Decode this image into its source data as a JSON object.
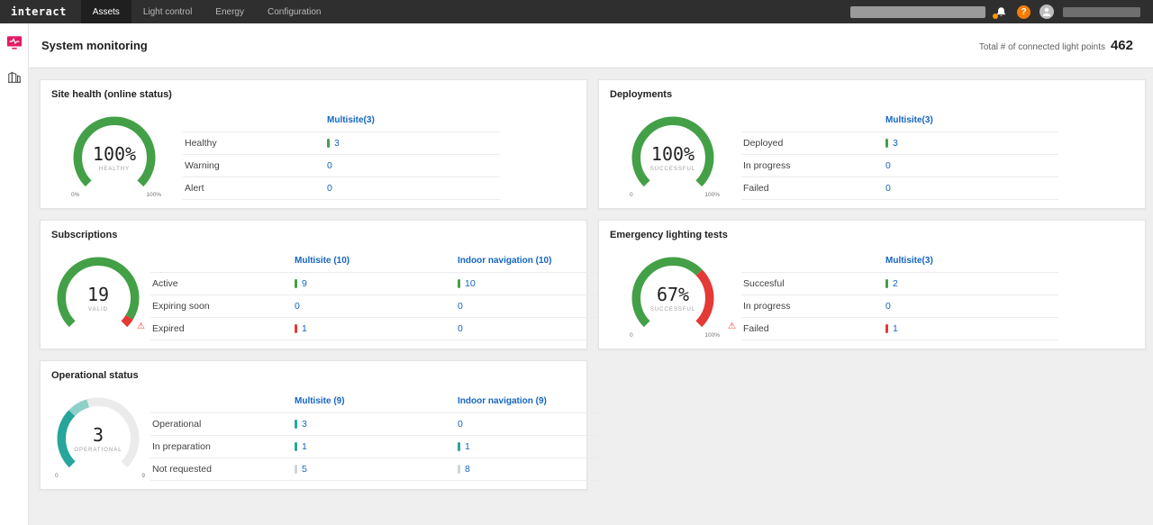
{
  "nav": {
    "brand": "interact",
    "tabs": [
      {
        "label": "Assets",
        "active": true
      },
      {
        "label": "Light control",
        "active": false
      },
      {
        "label": "Energy",
        "active": false
      },
      {
        "label": "Configuration",
        "active": false
      }
    ],
    "help": "?"
  },
  "sidebar": {
    "items": [
      {
        "name": "monitoring-icon",
        "active": true
      },
      {
        "name": "sites-icon",
        "active": false
      }
    ]
  },
  "header": {
    "title": "System monitoring",
    "total_label": "Total # of connected light points",
    "total_value": "462"
  },
  "colors": {
    "green": "#43a047",
    "red": "#e53935",
    "teal": "#26a69a",
    "teal_light": "#8ed0c9",
    "pale": "#ccd7d9",
    "track": "#ebebeb",
    "link": "#1565c0",
    "brand_pink": "#e31b64"
  },
  "cards": [
    {
      "title": "Site health (online status)",
      "gauge": {
        "value": "100%",
        "sub": "HEALTHY",
        "min": "0%",
        "max": "100%",
        "segments": [
          {
            "color": "green",
            "pct": 100
          }
        ]
      },
      "columns": [
        "Multisite(3)"
      ],
      "rows": [
        {
          "label": "Healthy",
          "warn": false,
          "cells": [
            {
              "bar": "green",
              "value": "3"
            }
          ]
        },
        {
          "label": "Warning",
          "warn": false,
          "cells": [
            {
              "bar": null,
              "value": "0"
            }
          ]
        },
        {
          "label": "Alert",
          "warn": false,
          "cells": [
            {
              "bar": null,
              "value": "0"
            }
          ]
        }
      ]
    },
    {
      "title": "Deployments",
      "gauge": {
        "value": "100%",
        "sub": "SUCCESSFUL",
        "min": "0",
        "max": "100%",
        "segments": [
          {
            "color": "green",
            "pct": 100
          }
        ]
      },
      "columns": [
        "Multisite(3)"
      ],
      "rows": [
        {
          "label": "Deployed",
          "warn": false,
          "cells": [
            {
              "bar": "green",
              "value": "3"
            }
          ]
        },
        {
          "label": "In progress",
          "warn": false,
          "cells": [
            {
              "bar": null,
              "value": "0"
            }
          ]
        },
        {
          "label": "Failed",
          "warn": false,
          "cells": [
            {
              "bar": null,
              "value": "0"
            }
          ]
        }
      ]
    },
    {
      "title": "Subscriptions",
      "gauge": {
        "value": "19",
        "sub": "VALID",
        "min": "",
        "max": "",
        "segments": [
          {
            "color": "green",
            "pct": 95
          },
          {
            "color": "red",
            "pct": 5
          }
        ]
      },
      "columns": [
        "Multisite (10)",
        "Indoor navigation (10)"
      ],
      "rows": [
        {
          "label": "Active",
          "warn": false,
          "cells": [
            {
              "bar": "green",
              "value": "9"
            },
            {
              "bar": "green",
              "value": "10"
            }
          ]
        },
        {
          "label": "Expiring soon",
          "warn": false,
          "cells": [
            {
              "bar": null,
              "value": "0"
            },
            {
              "bar": null,
              "value": "0"
            }
          ]
        },
        {
          "label": "Expired",
          "warn": true,
          "cells": [
            {
              "bar": "red",
              "value": "1"
            },
            {
              "bar": null,
              "value": "0"
            }
          ]
        }
      ]
    },
    {
      "title": "Emergency lighting tests",
      "gauge": {
        "value": "67%",
        "sub": "SUCCESSFUL",
        "min": "0",
        "max": "100%",
        "segments": [
          {
            "color": "green",
            "pct": 67
          },
          {
            "color": "red",
            "pct": 33
          }
        ]
      },
      "columns": [
        "Multisite(3)"
      ],
      "rows": [
        {
          "label": "Succesful",
          "warn": false,
          "cells": [
            {
              "bar": "green",
              "value": "2"
            }
          ]
        },
        {
          "label": "In progress",
          "warn": false,
          "cells": [
            {
              "bar": null,
              "value": "0"
            }
          ]
        },
        {
          "label": "Failed",
          "warn": true,
          "cells": [
            {
              "bar": "red",
              "value": "1"
            }
          ]
        }
      ]
    },
    {
      "title": "Operational status",
      "gauge": {
        "value": "3",
        "sub": "OPERATIONAL",
        "min": "0",
        "max": "9",
        "segments": [
          {
            "color": "teal",
            "pct": 33
          },
          {
            "color": "teal_light",
            "pct": 11
          }
        ]
      },
      "columns": [
        "Multisite (9)",
        "Indoor navigation (9)"
      ],
      "rows": [
        {
          "label": "Operational",
          "warn": false,
          "cells": [
            {
              "bar": "teal",
              "value": "3"
            },
            {
              "bar": null,
              "value": "0"
            }
          ]
        },
        {
          "label": "In preparation",
          "warn": false,
          "cells": [
            {
              "bar": "teal",
              "value": "1"
            },
            {
              "bar": "teal",
              "value": "1"
            }
          ]
        },
        {
          "label": "Not requested",
          "warn": false,
          "cells": [
            {
              "bar": "pale",
              "value": "5"
            },
            {
              "bar": "pale",
              "value": "8"
            }
          ]
        }
      ]
    }
  ]
}
